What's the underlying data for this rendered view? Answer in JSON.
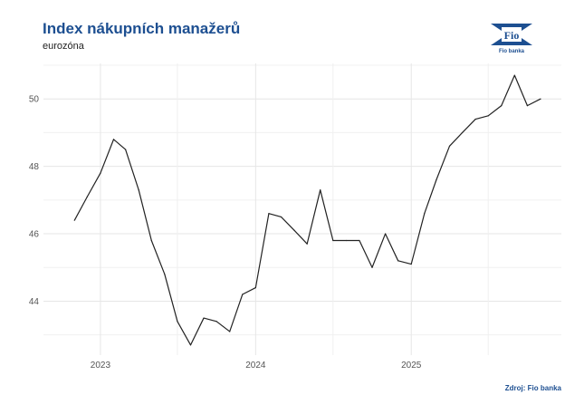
{
  "header": {
    "title": "Index nákupních manažerů",
    "subtitle": "eurozóna"
  },
  "footer": {
    "source": "Zdroj: Fio banka"
  },
  "logo": {
    "text": "Fio",
    "caption": "Fio banka"
  },
  "colors": {
    "title": "#1d4f91",
    "line": "#222222",
    "grid": "#e6e6e6"
  },
  "chart_data": {
    "type": "line",
    "title": "Index nákupních manažerů",
    "subtitle": "eurozóna",
    "xlabel": "",
    "ylabel": "",
    "ylim": [
      42.4,
      51.0
    ],
    "xlim": [
      "2022-08-20",
      "2025-12-20"
    ],
    "grid": true,
    "y_ticks": [
      44,
      46,
      48,
      50
    ],
    "x_ticks": [
      {
        "date": "2023-01-01",
        "label": "2023"
      },
      {
        "date": "2024-01-01",
        "label": "2024"
      },
      {
        "date": "2025-01-01",
        "label": "2025"
      }
    ],
    "series": [
      {
        "x": [
          "2022-11",
          "2022-12",
          "2023-01",
          "2023-02",
          "2023-03",
          "2023-04",
          "2023-05",
          "2023-06",
          "2023-07",
          "2023-08",
          "2023-09",
          "2023-10",
          "2023-11",
          "2023-12",
          "2024-01",
          "2024-02",
          "2024-03",
          "2024-04",
          "2024-05",
          "2024-06",
          "2024-07",
          "2024-08",
          "2024-09",
          "2024-10",
          "2024-11",
          "2024-12",
          "2025-01",
          "2025-02",
          "2025-03",
          "2025-04",
          "2025-05",
          "2025-06",
          "2025-07",
          "2025-08",
          "2025-09",
          "2025-10",
          "2025-11"
        ],
        "values": [
          46.4,
          47.1,
          47.8,
          48.8,
          48.5,
          47.3,
          45.8,
          44.8,
          43.4,
          42.7,
          43.5,
          43.4,
          43.1,
          44.2,
          44.4,
          46.6,
          46.5,
          46.1,
          45.7,
          47.3,
          45.8,
          45.8,
          45.8,
          45.0,
          46.0,
          45.2,
          45.1,
          46.6,
          47.6,
          48.6,
          49.0,
          49.4,
          49.5,
          49.8,
          50.7,
          49.8,
          50.0
        ]
      }
    ]
  }
}
